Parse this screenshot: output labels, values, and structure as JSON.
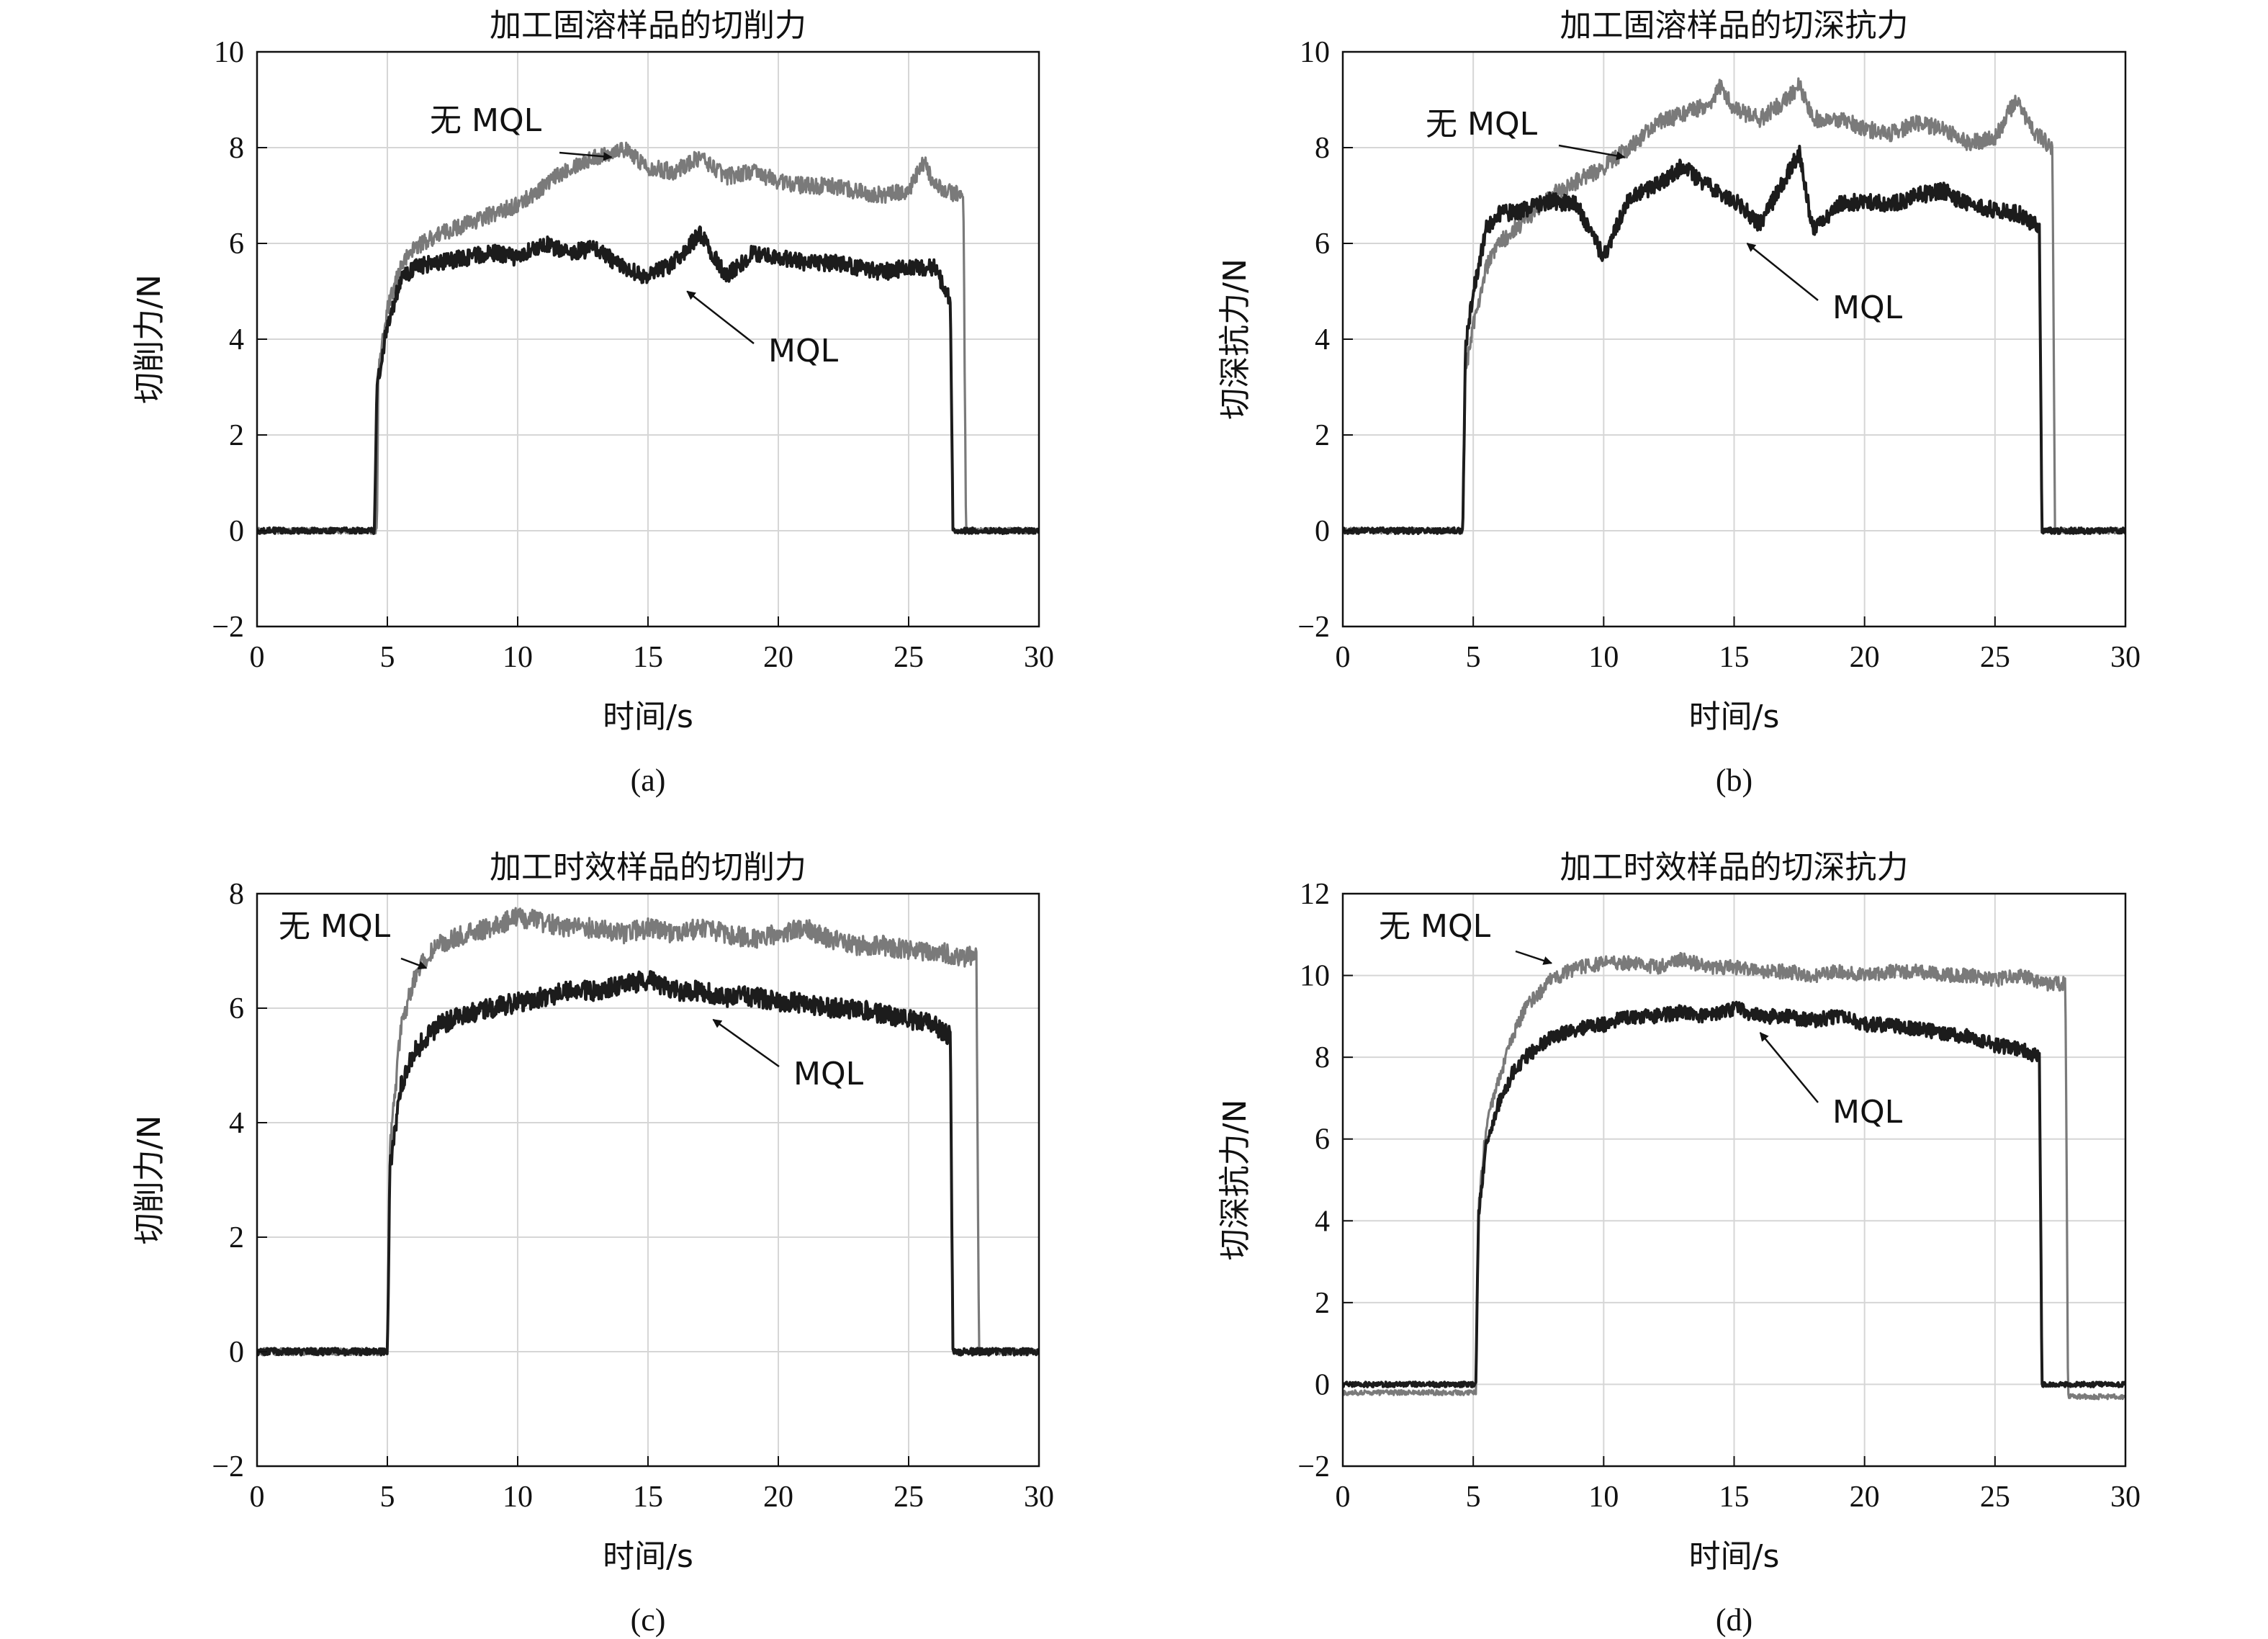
{
  "colors": {
    "no_mql": "#7a7a7a",
    "mql": "#1c1c1c",
    "grid": "#d6d6d6",
    "axis": "#111111"
  },
  "chart_data": [
    {
      "type": "line",
      "caption": "(a)",
      "title": "加工固溶样品的切削力",
      "xlabel": "时间/s",
      "ylabel": "切削力/N",
      "xlim": [
        0,
        30
      ],
      "ylim": [
        -2,
        10
      ],
      "xticks": [
        0,
        5,
        10,
        15,
        20,
        25,
        30
      ],
      "yticks": [
        -2,
        0,
        2,
        4,
        6,
        8,
        10
      ],
      "ytick_labels": [
        "−2",
        "0",
        "2",
        "4",
        "6",
        "8",
        "10"
      ],
      "grid": true,
      "series": [
        {
          "name": "无 MQL",
          "role": "no_mql",
          "x": [
            0,
            4.6,
            4.65,
            5.0,
            5.5,
            6.0,
            7.0,
            8.0,
            9.0,
            10.0,
            11.0,
            12.0,
            13.0,
            14.0,
            15.0,
            16.0,
            17.0,
            18.0,
            19.0,
            20.0,
            21.0,
            22.0,
            23.0,
            24.0,
            25.0,
            25.6,
            26.0,
            27.0,
            27.1,
            27.2,
            30.0
          ],
          "y": [
            0.0,
            0.0,
            3.3,
            4.6,
            5.5,
            5.9,
            6.2,
            6.4,
            6.6,
            6.8,
            7.2,
            7.6,
            7.8,
            8.0,
            7.6,
            7.5,
            7.8,
            7.4,
            7.5,
            7.3,
            7.2,
            7.2,
            7.1,
            7.0,
            7.1,
            7.7,
            7.2,
            7.0,
            6.9,
            0.0,
            0.0
          ]
        },
        {
          "name": "MQL",
          "role": "mql",
          "x": [
            0,
            4.5,
            4.6,
            5.0,
            5.5,
            6.0,
            7.0,
            8.0,
            9.0,
            10.0,
            11.0,
            12.0,
            13.0,
            14.0,
            15.0,
            16.0,
            17.0,
            18.0,
            19.0,
            20.0,
            21.0,
            22.0,
            23.0,
            24.0,
            25.0,
            26.0,
            26.6,
            26.7,
            30.0
          ],
          "y": [
            0.0,
            0.0,
            3.0,
            4.3,
            5.2,
            5.5,
            5.6,
            5.7,
            5.8,
            5.7,
            6.0,
            5.8,
            5.9,
            5.5,
            5.3,
            5.6,
            6.2,
            5.3,
            5.8,
            5.7,
            5.6,
            5.6,
            5.5,
            5.4,
            5.5,
            5.5,
            4.8,
            0.0,
            0.0
          ]
        }
      ],
      "annotations": [
        {
          "text": "无 MQL",
          "series": "no_mql",
          "target_x": 13.6,
          "target_y": 7.8
        },
        {
          "text": "MQL",
          "series": "mql",
          "target_x": 16.5,
          "target_y": 5.0
        }
      ]
    },
    {
      "type": "line",
      "caption": "(b)",
      "title": "加工固溶样品的切深抗力",
      "xlabel": "时间/s",
      "ylabel": "切深抗力/N",
      "xlim": [
        0,
        30
      ],
      "ylim": [
        -2,
        10
      ],
      "xticks": [
        0,
        5,
        10,
        15,
        20,
        25,
        30
      ],
      "yticks": [
        -2,
        0,
        2,
        4,
        6,
        8,
        10
      ],
      "ytick_labels": [
        "−2",
        "0",
        "2",
        "4",
        "6",
        "8",
        "10"
      ],
      "grid": true,
      "series": [
        {
          "name": "无 MQL",
          "role": "no_mql",
          "x": [
            0,
            4.6,
            4.7,
            5.0,
            5.5,
            6.0,
            7.0,
            8.0,
            9.0,
            10.0,
            11.0,
            12.0,
            13.0,
            14.0,
            14.5,
            15.0,
            16.0,
            17.0,
            17.5,
            18.0,
            19.0,
            20.0,
            21.0,
            22.0,
            23.0,
            24.0,
            25.0,
            25.8,
            26.5,
            27.2,
            27.3,
            30.0
          ],
          "y": [
            0.0,
            0.0,
            3.3,
            4.3,
            5.5,
            6.0,
            6.5,
            7.0,
            7.3,
            7.6,
            8.0,
            8.5,
            8.7,
            8.9,
            9.3,
            8.8,
            8.6,
            9.0,
            9.3,
            8.6,
            8.6,
            8.4,
            8.3,
            8.5,
            8.4,
            8.1,
            8.2,
            9.0,
            8.3,
            8.0,
            0.0,
            0.0
          ]
        },
        {
          "name": "MQL",
          "role": "mql",
          "x": [
            0,
            4.6,
            4.7,
            5.0,
            5.5,
            6.0,
            7.0,
            8.0,
            9.0,
            10.0,
            11.0,
            12.0,
            13.0,
            14.0,
            15.0,
            16.0,
            17.0,
            17.5,
            18.0,
            19.0,
            20.0,
            21.0,
            22.0,
            23.0,
            24.0,
            25.0,
            26.0,
            26.7,
            26.8,
            30.0
          ],
          "y": [
            0.0,
            0.0,
            3.8,
            5.0,
            6.3,
            6.6,
            6.7,
            6.9,
            6.8,
            5.7,
            7.0,
            7.2,
            7.6,
            7.2,
            6.9,
            6.4,
            7.4,
            7.9,
            6.3,
            6.8,
            6.9,
            6.8,
            7.0,
            7.1,
            6.8,
            6.7,
            6.6,
            6.3,
            0.0,
            0.0
          ]
        }
      ],
      "annotations": [
        {
          "text": "无 MQL",
          "series": "no_mql",
          "target_x": 10.8,
          "target_y": 7.8
        },
        {
          "text": "MQL",
          "series": "mql",
          "target_x": 15.5,
          "target_y": 6.0
        }
      ]
    },
    {
      "type": "line",
      "caption": "(c)",
      "title": "加工时效样品的切削力",
      "xlabel": "时间/s",
      "ylabel": "切削力/N",
      "xlim": [
        0,
        30
      ],
      "ylim": [
        -2,
        8
      ],
      "xticks": [
        0,
        5,
        10,
        15,
        20,
        25,
        30
      ],
      "yticks": [
        -2,
        0,
        2,
        4,
        6,
        8
      ],
      "ytick_labels": [
        "−2",
        "0",
        "2",
        "4",
        "6",
        "8"
      ],
      "grid": true,
      "series": [
        {
          "name": "无 MQL",
          "role": "no_mql",
          "x": [
            0,
            5.0,
            5.1,
            5.5,
            6.0,
            6.5,
            7.0,
            8.0,
            9.0,
            10.0,
            11.0,
            12.0,
            13.0,
            14.0,
            15.0,
            16.0,
            17.0,
            18.0,
            19.0,
            20.0,
            21.0,
            22.0,
            23.0,
            24.0,
            25.0,
            26.0,
            27.0,
            27.6,
            27.7,
            30.0
          ],
          "y": [
            0.0,
            0.0,
            3.5,
            5.6,
            6.5,
            6.9,
            7.1,
            7.3,
            7.4,
            7.6,
            7.5,
            7.4,
            7.4,
            7.3,
            7.4,
            7.3,
            7.4,
            7.3,
            7.2,
            7.3,
            7.4,
            7.2,
            7.1,
            7.1,
            7.0,
            7.0,
            6.9,
            6.9,
            0.0,
            0.0
          ]
        },
        {
          "name": "MQL",
          "role": "mql",
          "x": [
            0,
            5.0,
            5.1,
            5.5,
            6.0,
            6.5,
            7.0,
            8.0,
            9.0,
            10.0,
            11.0,
            12.0,
            13.0,
            14.0,
            15.0,
            16.0,
            17.0,
            18.0,
            19.0,
            20.0,
            21.0,
            22.0,
            23.0,
            24.0,
            25.0,
            26.0,
            26.6,
            26.7,
            30.0
          ],
          "y": [
            0.0,
            0.0,
            3.2,
            4.6,
            5.2,
            5.5,
            5.7,
            5.9,
            6.0,
            6.1,
            6.2,
            6.3,
            6.3,
            6.4,
            6.5,
            6.3,
            6.3,
            6.2,
            6.2,
            6.1,
            6.1,
            6.0,
            6.0,
            5.9,
            5.8,
            5.7,
            5.5,
            0.0,
            0.0
          ]
        }
      ],
      "annotations": [
        {
          "text": "无 MQL",
          "series": "no_mql",
          "target_x": 6.5,
          "target_y": 6.7
        },
        {
          "text": "MQL",
          "series": "mql",
          "target_x": 17.5,
          "target_y": 5.8
        }
      ]
    },
    {
      "type": "line",
      "caption": "(d)",
      "title": "加工时效样品的切深抗力",
      "xlabel": "时间/s",
      "ylabel": "切深抗力/N",
      "xlim": [
        0,
        30
      ],
      "ylim": [
        -2,
        12
      ],
      "xticks": [
        0,
        5,
        10,
        15,
        20,
        25,
        30
      ],
      "yticks": [
        -2,
        0,
        2,
        4,
        6,
        8,
        10,
        12
      ],
      "ytick_labels": [
        "−2",
        "0",
        "2",
        "4",
        "6",
        "8",
        "10",
        "12"
      ],
      "grid": true,
      "series": [
        {
          "name": "无 MQL",
          "role": "no_mql",
          "x": [
            0,
            5.1,
            5.2,
            5.5,
            6.0,
            6.5,
            7.0,
            8.0,
            9.0,
            10.0,
            11.0,
            12.0,
            13.0,
            14.0,
            15.0,
            16.0,
            17.0,
            18.0,
            19.0,
            20.0,
            21.0,
            22.0,
            23.0,
            24.0,
            25.0,
            26.0,
            27.0,
            27.7,
            27.8,
            30.0
          ],
          "y": [
            -0.2,
            -0.2,
            4.3,
            6.3,
            7.5,
            8.5,
            9.2,
            9.9,
            10.2,
            10.3,
            10.3,
            10.2,
            10.4,
            10.2,
            10.2,
            10.1,
            10.1,
            10.0,
            10.1,
            10.0,
            10.1,
            10.1,
            10.0,
            10.0,
            9.9,
            10.0,
            9.8,
            9.8,
            -0.3,
            -0.3
          ]
        },
        {
          "name": "MQL",
          "role": "mql",
          "x": [
            0,
            5.1,
            5.2,
            5.5,
            6.0,
            6.5,
            7.0,
            8.0,
            9.0,
            10.0,
            11.0,
            12.0,
            13.0,
            14.0,
            15.0,
            16.0,
            17.0,
            18.0,
            19.0,
            20.0,
            21.0,
            22.0,
            23.0,
            24.0,
            25.0,
            26.0,
            26.7,
            26.8,
            30.0
          ],
          "y": [
            0.0,
            0.0,
            4.1,
            5.9,
            6.9,
            7.6,
            8.0,
            8.5,
            8.7,
            8.8,
            9.0,
            9.0,
            9.1,
            9.0,
            9.2,
            9.0,
            9.0,
            8.9,
            9.0,
            8.8,
            8.8,
            8.7,
            8.6,
            8.5,
            8.3,
            8.2,
            8.0,
            0.0,
            0.0
          ]
        }
      ],
      "annotations": [
        {
          "text": "无 MQL",
          "series": "no_mql",
          "target_x": 8.0,
          "target_y": 10.3
        },
        {
          "text": "MQL",
          "series": "mql",
          "target_x": 16.0,
          "target_y": 8.6
        }
      ]
    }
  ]
}
